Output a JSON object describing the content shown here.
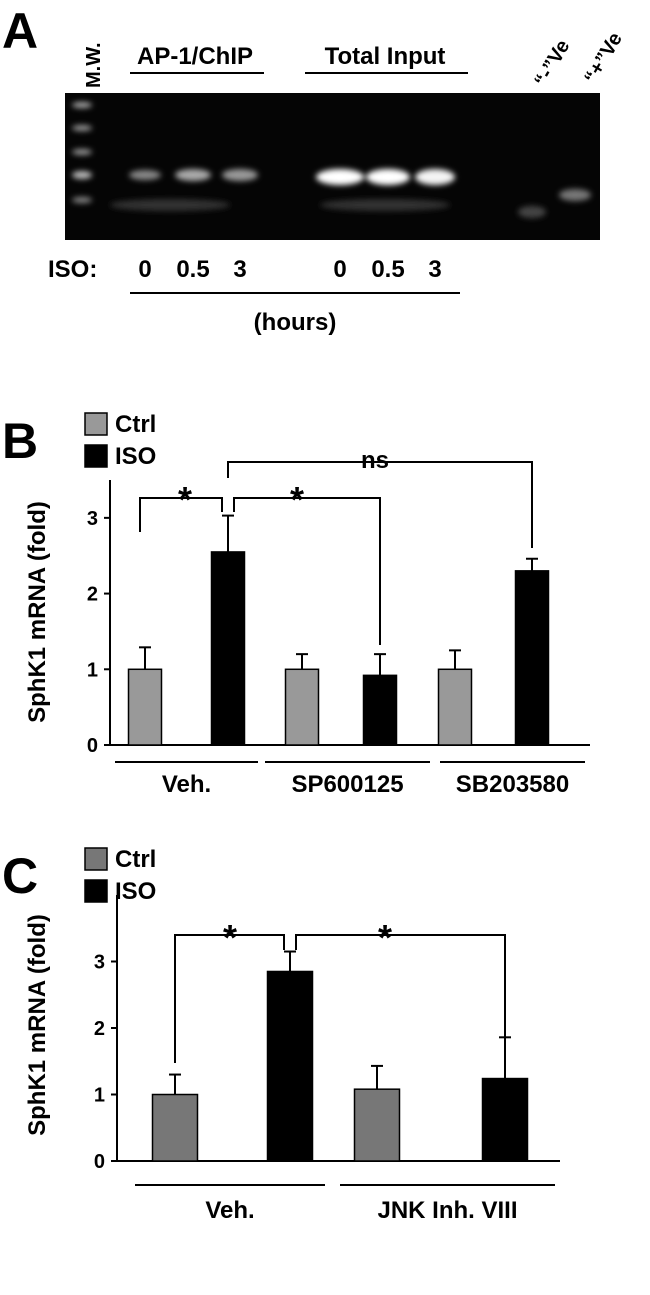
{
  "panel_a": {
    "label": "A",
    "marker": "M.W.",
    "groups": [
      "AP-1/ChIP",
      "Total Input"
    ],
    "controls": [
      "“-”Ve",
      "“+”Ve"
    ],
    "row_label": "ISO:",
    "times": [
      "0",
      "0.5",
      "3",
      "0",
      "0.5",
      "3"
    ],
    "unit": "(hours)"
  },
  "chart_data": [
    {
      "type": "bar",
      "panel": "B",
      "ylabel": "SphK1 mRNA (fold)",
      "categories": [
        "Veh.",
        "SP600125",
        "SB203580"
      ],
      "series": [
        {
          "name": "Ctrl",
          "color": "#999999",
          "values": [
            1,
            1,
            1
          ],
          "errors": [
            0.29,
            0.2,
            0.25
          ]
        },
        {
          "name": "ISO",
          "color": "#000000",
          "values": [
            2.55,
            0.92,
            2.3
          ],
          "errors": [
            0.48,
            0.28,
            0.16
          ]
        }
      ],
      "ylim": [
        0,
        3.5
      ],
      "yticks": [
        0,
        1,
        2,
        3
      ],
      "annotations": [
        "*",
        "*",
        "ns"
      ]
    },
    {
      "type": "bar",
      "panel": "C",
      "ylabel": "SphK1 mRNA (fold)",
      "categories": [
        "Veh.",
        "JNK Inh. VIII"
      ],
      "series": [
        {
          "name": "Ctrl",
          "color": "#777777",
          "values": [
            1,
            1.08
          ],
          "errors": [
            0.3,
            0.35
          ]
        },
        {
          "name": "ISO",
          "color": "#000000",
          "values": [
            2.85,
            1.24
          ],
          "errors": [
            0.3,
            0.62
          ]
        }
      ],
      "ylim": [
        0,
        4
      ],
      "yticks": [
        0,
        1,
        2,
        3
      ],
      "annotations": [
        "*",
        "*"
      ]
    }
  ]
}
